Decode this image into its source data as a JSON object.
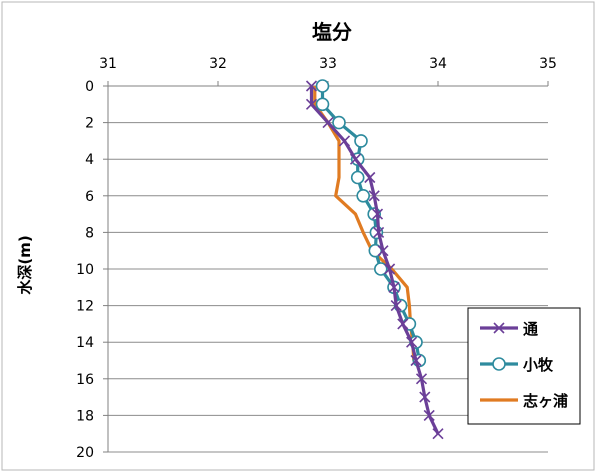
{
  "chart_data": {
    "type": "line",
    "title": "塩分",
    "xlabel": "",
    "ylabel": "水深(m)",
    "xlim": [
      31,
      35
    ],
    "ylim": [
      0,
      20
    ],
    "x_axis_position": "top",
    "y_axis_inverted": true,
    "x_ticks": [
      "31",
      "32",
      "33",
      "34",
      "35"
    ],
    "y_ticks": [
      "0",
      "2",
      "4",
      "6",
      "8",
      "10",
      "12",
      "14",
      "16",
      "18",
      "20"
    ],
    "grid": {
      "horizontal": true,
      "vertical": false
    },
    "legend_position": "bottom-right",
    "series": [
      {
        "name": "通",
        "color": "#6b3f98",
        "marker": "x",
        "points": [
          [
            32.85,
            0
          ],
          [
            32.85,
            1
          ],
          [
            33.0,
            2
          ],
          [
            33.15,
            3
          ],
          [
            33.25,
            4
          ],
          [
            33.38,
            5
          ],
          [
            33.42,
            6
          ],
          [
            33.45,
            7
          ],
          [
            33.46,
            8
          ],
          [
            33.5,
            9
          ],
          [
            33.56,
            10
          ],
          [
            33.6,
            11
          ],
          [
            33.62,
            12
          ],
          [
            33.68,
            13
          ],
          [
            33.76,
            14
          ],
          [
            33.8,
            15
          ],
          [
            33.85,
            16
          ],
          [
            33.88,
            17
          ],
          [
            33.92,
            18
          ],
          [
            34.0,
            19
          ]
        ]
      },
      {
        "name": "小牧",
        "color": "#2e8b9e",
        "marker": "circle",
        "points": [
          [
            32.95,
            0
          ],
          [
            32.95,
            1
          ],
          [
            33.1,
            2
          ],
          [
            33.3,
            3
          ],
          [
            33.27,
            4
          ],
          [
            33.27,
            5
          ],
          [
            33.32,
            6
          ],
          [
            33.42,
            7
          ],
          [
            33.44,
            8
          ],
          [
            33.43,
            9
          ],
          [
            33.48,
            10
          ],
          [
            33.6,
            11
          ],
          [
            33.66,
            12
          ],
          [
            33.74,
            13
          ],
          [
            33.8,
            14
          ],
          [
            33.83,
            15
          ]
        ]
      },
      {
        "name": "志ヶ浦",
        "color": "#e07b22",
        "marker": "none",
        "points": [
          [
            32.88,
            0
          ],
          [
            32.88,
            1
          ],
          [
            33.0,
            2
          ],
          [
            33.1,
            3
          ],
          [
            33.1,
            4
          ],
          [
            33.1,
            5
          ],
          [
            33.07,
            6
          ],
          [
            33.25,
            7
          ],
          [
            33.32,
            8
          ],
          [
            33.4,
            9
          ],
          [
            33.58,
            10
          ],
          [
            33.72,
            11
          ],
          [
            33.74,
            12
          ],
          [
            33.75,
            13
          ],
          [
            33.77,
            14
          ],
          [
            33.78,
            15
          ]
        ]
      }
    ]
  }
}
